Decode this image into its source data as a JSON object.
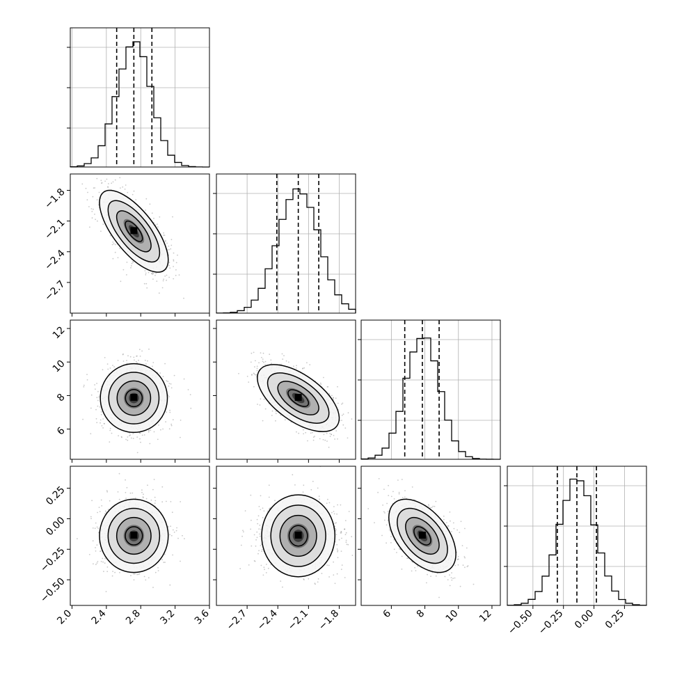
{
  "chart_data": {
    "type": "corner",
    "title": "",
    "grid": true,
    "parameters": [
      {
        "index": 0,
        "range": [
          1.98,
          3.6
        ],
        "ticks": [
          2.0,
          2.4,
          2.8,
          3.2,
          3.6
        ],
        "tick_labels": [
          "2.0",
          "2.4",
          "2.8",
          "3.2",
          "3.6"
        ],
        "quantiles": [
          2.52,
          2.72,
          2.93
        ],
        "mean": 2.72,
        "sd": 0.2
      },
      {
        "index": 1,
        "range": [
          -3.0,
          -1.64
        ],
        "ticks": [
          -2.7,
          -2.4,
          -2.1,
          -1.8
        ],
        "tick_labels": [
          "−2.7",
          "−2.4",
          "−2.1",
          "−1.8"
        ],
        "quantiles": [
          -2.41,
          -2.2,
          -2.0
        ],
        "mean": -2.2,
        "sd": 0.2
      },
      {
        "index": 2,
        "range": [
          4.2,
          12.5
        ],
        "ticks": [
          6,
          8,
          10,
          12
        ],
        "tick_labels": [
          "6",
          "8",
          "10",
          "12"
        ],
        "quantiles": [
          6.8,
          7.85,
          8.85
        ],
        "mean": 7.85,
        "sd": 1.0
      },
      {
        "index": 3,
        "range": [
          -0.71,
          0.43
        ],
        "ticks": [
          -0.5,
          -0.25,
          0.0,
          0.25
        ],
        "tick_labels": [
          "−0.50",
          "−0.25",
          "0.00",
          "0.25"
        ],
        "quantiles": [
          -0.3,
          -0.14,
          0.02
        ],
        "mean": -0.14,
        "sd": 0.15
      }
    ],
    "correlations": [
      [
        1.0,
        -0.7,
        0.0,
        0.0
      ],
      [
        -0.7,
        1.0,
        -0.6,
        0.0
      ],
      [
        0.0,
        -0.6,
        1.0,
        -0.5
      ],
      [
        0.0,
        0.0,
        -0.5,
        1.0
      ]
    ],
    "histogram_bins": 20,
    "contour_levels_sigma": [
      0.5,
      1.0,
      1.5,
      2.0
    ],
    "colors": {
      "line": "#000000",
      "scatter": "#9a9a9a",
      "grid": "#b0b0b0"
    }
  }
}
